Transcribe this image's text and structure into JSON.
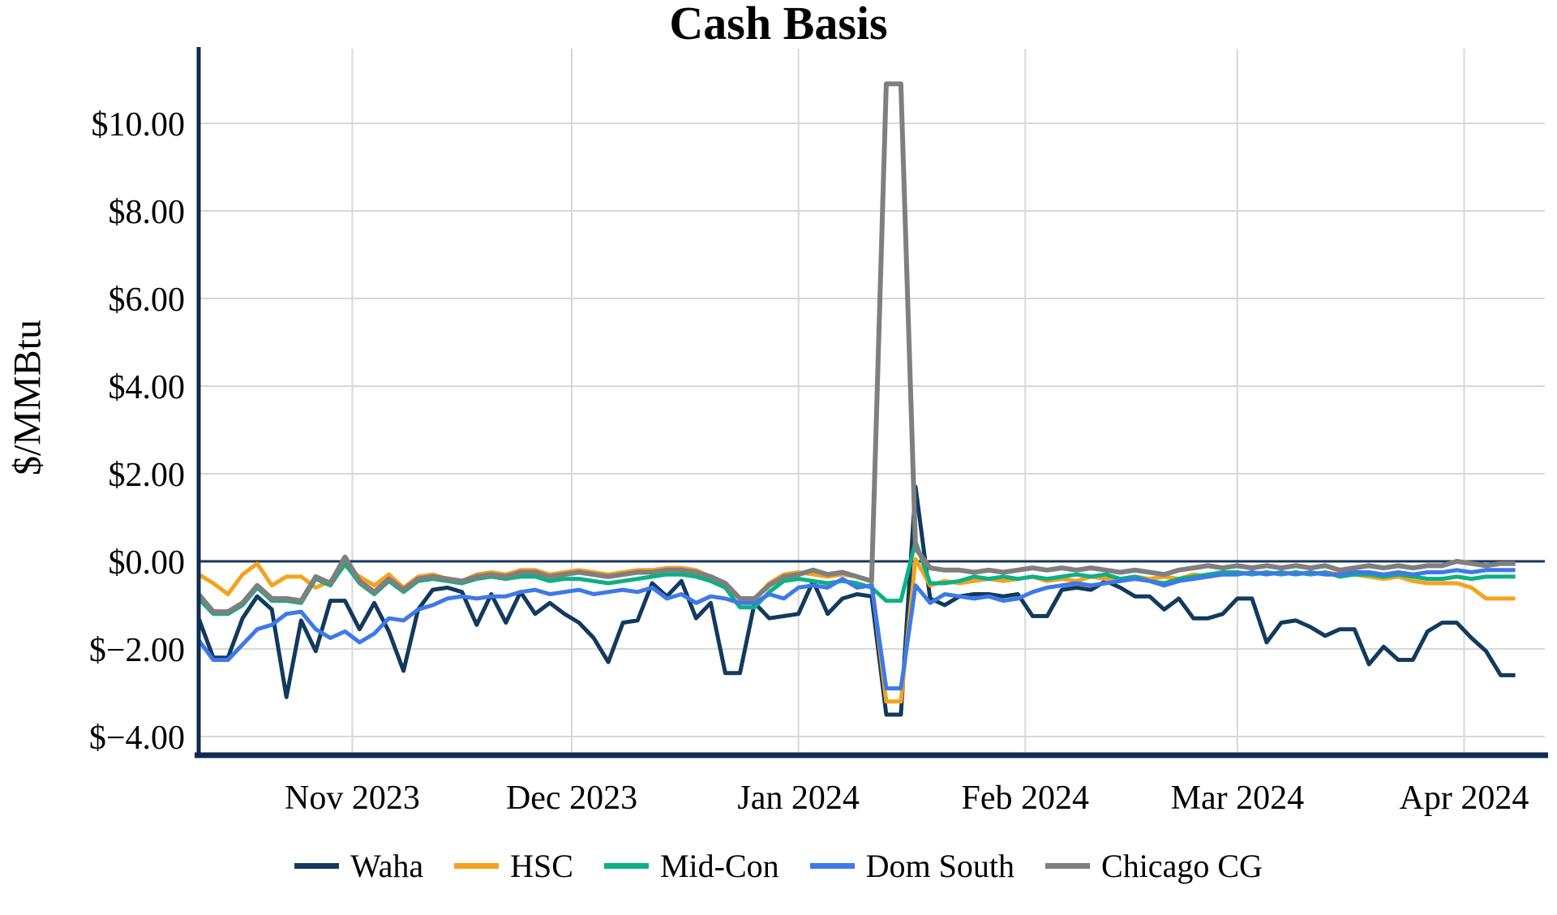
{
  "colors": {
    "background": "#FFFFFF",
    "axis": "#0D2C52",
    "zero_line": "#17375E",
    "grid": "#D8D8D8",
    "text": "#000000"
  },
  "chart_data": {
    "type": "line",
    "title": "Cash Basis",
    "ylabel": "$/MMBtu",
    "xlabel": "",
    "grid": true,
    "legend_position": "bottom",
    "zero_line": true,
    "ylim": [
      -4.35,
      11.7
    ],
    "x_start_date": "2023-10-11",
    "x_unit": "days since 2023-10-11, sampled every 2 days",
    "x_days": [
      0,
      2,
      4,
      6,
      8,
      10,
      12,
      14,
      16,
      18,
      20,
      22,
      24,
      26,
      28,
      30,
      32,
      34,
      36,
      38,
      40,
      42,
      44,
      46,
      48,
      50,
      52,
      54,
      56,
      58,
      60,
      62,
      64,
      66,
      68,
      70,
      72,
      74,
      76,
      78,
      80,
      82,
      84,
      86,
      88,
      90,
      92,
      94,
      96,
      98,
      100,
      102,
      104,
      106,
      108,
      110,
      112,
      114,
      116,
      118,
      120,
      122,
      124,
      126,
      128,
      130,
      132,
      134,
      136,
      138,
      140,
      142,
      144,
      146,
      148,
      150,
      152,
      154,
      156,
      158,
      160,
      162,
      164,
      166,
      168,
      170,
      172,
      174,
      176,
      178,
      180
    ],
    "x_ticks": [
      {
        "label": "Nov 2023",
        "day": 21
      },
      {
        "label": "Dec 2023",
        "day": 51
      },
      {
        "label": "Jan 2024",
        "day": 82
      },
      {
        "label": "Feb 2024",
        "day": 113
      },
      {
        "label": "Mar 2024",
        "day": 142
      },
      {
        "label": "Apr 2024",
        "day": 173
      }
    ],
    "y_ticks": [
      {
        "label": "$10.00",
        "value": 10
      },
      {
        "label": "$8.00",
        "value": 8
      },
      {
        "label": "$6.00",
        "value": 6
      },
      {
        "label": "$4.00",
        "value": 4
      },
      {
        "label": "$2.00",
        "value": 2
      },
      {
        "label": "$0.00",
        "value": 0
      },
      {
        "label": "$−2.00",
        "value": -2
      },
      {
        "label": "$−4.00",
        "value": -4
      }
    ],
    "series": [
      {
        "name": "Waha",
        "color": "#123A5E",
        "width": 5,
        "values": [
          -1.3,
          -2.2,
          -2.2,
          -1.3,
          -0.8,
          -1.1,
          -3.1,
          -1.35,
          -2.05,
          -0.9,
          -0.9,
          -1.55,
          -0.95,
          -1.6,
          -2.5,
          -1.1,
          -0.65,
          -0.6,
          -0.7,
          -1.45,
          -0.75,
          -1.4,
          -0.7,
          -1.2,
          -0.95,
          -1.2,
          -1.4,
          -1.75,
          -2.3,
          -1.4,
          -1.35,
          -0.5,
          -0.8,
          -0.45,
          -1.3,
          -0.95,
          -2.55,
          -2.55,
          -0.95,
          -1.3,
          -1.25,
          -1.2,
          -0.45,
          -1.2,
          -0.85,
          -0.75,
          -0.8,
          -3.5,
          -3.5,
          1.7,
          -0.85,
          -1.0,
          -0.8,
          -0.75,
          -0.75,
          -0.8,
          -0.75,
          -1.25,
          -1.25,
          -0.65,
          -0.6,
          -0.65,
          -0.45,
          -0.6,
          -0.8,
          -0.8,
          -1.1,
          -0.85,
          -1.3,
          -1.3,
          -1.2,
          -0.85,
          -0.85,
          -1.85,
          -1.4,
          -1.35,
          -1.5,
          -1.7,
          -1.55,
          -1.55,
          -2.35,
          -1.95,
          -2.25,
          -2.25,
          -1.6,
          -1.4,
          -1.4,
          -1.75,
          -2.05,
          -2.6,
          -2.6
        ]
      },
      {
        "name": "HSC",
        "color": "#F6A21D",
        "width": 5,
        "values": [
          -0.3,
          -0.5,
          -0.75,
          -0.3,
          -0.05,
          -0.55,
          -0.35,
          -0.35,
          -0.6,
          -0.45,
          -0.1,
          -0.35,
          -0.55,
          -0.3,
          -0.6,
          -0.35,
          -0.3,
          -0.4,
          -0.45,
          -0.3,
          -0.25,
          -0.3,
          -0.2,
          -0.2,
          -0.3,
          -0.25,
          -0.2,
          -0.25,
          -0.3,
          -0.25,
          -0.2,
          -0.2,
          -0.15,
          -0.15,
          -0.2,
          -0.35,
          -0.5,
          -0.85,
          -0.85,
          -0.5,
          -0.3,
          -0.25,
          -0.3,
          -0.35,
          -0.3,
          -0.35,
          -0.45,
          -3.2,
          -3.2,
          0.05,
          -0.55,
          -0.45,
          -0.5,
          -0.45,
          -0.4,
          -0.45,
          -0.4,
          -0.35,
          -0.45,
          -0.4,
          -0.45,
          -0.35,
          -0.4,
          -0.45,
          -0.35,
          -0.4,
          -0.35,
          -0.4,
          -0.3,
          -0.35,
          -0.3,
          -0.25,
          -0.3,
          -0.25,
          -0.3,
          -0.25,
          -0.3,
          -0.25,
          -0.3,
          -0.3,
          -0.35,
          -0.4,
          -0.35,
          -0.45,
          -0.5,
          -0.5,
          -0.5,
          -0.6,
          -0.85,
          -0.85,
          -0.85
        ]
      },
      {
        "name": "Mid-Con",
        "color": "#0BB184",
        "width": 5,
        "values": [
          -0.85,
          -1.2,
          -1.2,
          -1.0,
          -0.6,
          -0.9,
          -0.9,
          -0.95,
          -0.4,
          -0.55,
          -0.05,
          -0.5,
          -0.75,
          -0.45,
          -0.7,
          -0.45,
          -0.4,
          -0.45,
          -0.5,
          -0.4,
          -0.35,
          -0.4,
          -0.35,
          -0.35,
          -0.45,
          -0.4,
          -0.4,
          -0.45,
          -0.5,
          -0.45,
          -0.4,
          -0.35,
          -0.3,
          -0.3,
          -0.35,
          -0.45,
          -0.6,
          -1.05,
          -1.05,
          -0.7,
          -0.45,
          -0.4,
          -0.45,
          -0.5,
          -0.45,
          -0.5,
          -0.6,
          -0.9,
          -0.9,
          0.45,
          -0.5,
          -0.5,
          -0.45,
          -0.35,
          -0.4,
          -0.35,
          -0.4,
          -0.35,
          -0.4,
          -0.35,
          -0.3,
          -0.35,
          -0.3,
          -0.4,
          -0.35,
          -0.45,
          -0.5,
          -0.4,
          -0.35,
          -0.3,
          -0.25,
          -0.25,
          -0.3,
          -0.25,
          -0.3,
          -0.25,
          -0.3,
          -0.25,
          -0.35,
          -0.3,
          -0.3,
          -0.35,
          -0.3,
          -0.35,
          -0.4,
          -0.4,
          -0.35,
          -0.4,
          -0.35,
          -0.35,
          -0.35
        ]
      },
      {
        "name": "Dom South",
        "color": "#3D79E8",
        "width": 5,
        "values": [
          -1.8,
          -2.25,
          -2.25,
          -1.9,
          -1.55,
          -1.45,
          -1.2,
          -1.15,
          -1.55,
          -1.75,
          -1.6,
          -1.85,
          -1.65,
          -1.3,
          -1.35,
          -1.1,
          -1.0,
          -0.85,
          -0.8,
          -0.85,
          -0.8,
          -0.8,
          -0.7,
          -0.65,
          -0.75,
          -0.7,
          -0.65,
          -0.75,
          -0.7,
          -0.65,
          -0.7,
          -0.6,
          -0.85,
          -0.75,
          -0.95,
          -0.8,
          -0.85,
          -0.95,
          -0.95,
          -0.75,
          -0.85,
          -0.6,
          -0.55,
          -0.6,
          -0.4,
          -0.6,
          -0.55,
          -2.9,
          -2.9,
          -0.55,
          -0.95,
          -0.75,
          -0.8,
          -0.85,
          -0.8,
          -0.9,
          -0.85,
          -0.7,
          -0.6,
          -0.55,
          -0.5,
          -0.55,
          -0.5,
          -0.45,
          -0.4,
          -0.45,
          -0.55,
          -0.45,
          -0.4,
          -0.35,
          -0.3,
          -0.3,
          -0.25,
          -0.3,
          -0.25,
          -0.3,
          -0.25,
          -0.3,
          -0.3,
          -0.25,
          -0.25,
          -0.3,
          -0.25,
          -0.3,
          -0.25,
          -0.25,
          -0.2,
          -0.25,
          -0.2,
          -0.2,
          -0.2
        ]
      },
      {
        "name": "Chicago CG",
        "color": "#7F7F7F",
        "width": 6,
        "values": [
          -0.75,
          -1.15,
          -1.15,
          -0.95,
          -0.55,
          -0.85,
          -0.85,
          -0.9,
          -0.35,
          -0.5,
          0.1,
          -0.45,
          -0.7,
          -0.4,
          -0.65,
          -0.4,
          -0.35,
          -0.4,
          -0.45,
          -0.35,
          -0.3,
          -0.35,
          -0.25,
          -0.25,
          -0.35,
          -0.3,
          -0.25,
          -0.3,
          -0.35,
          -0.3,
          -0.25,
          -0.25,
          -0.2,
          -0.2,
          -0.25,
          -0.35,
          -0.5,
          -0.85,
          -0.85,
          -0.55,
          -0.35,
          -0.3,
          -0.2,
          -0.3,
          -0.25,
          -0.35,
          -0.45,
          10.9,
          10.9,
          0.3,
          -0.15,
          -0.2,
          -0.2,
          -0.25,
          -0.2,
          -0.25,
          -0.2,
          -0.15,
          -0.2,
          -0.15,
          -0.2,
          -0.15,
          -0.2,
          -0.25,
          -0.2,
          -0.25,
          -0.3,
          -0.2,
          -0.15,
          -0.1,
          -0.15,
          -0.1,
          -0.15,
          -0.1,
          -0.15,
          -0.1,
          -0.15,
          -0.1,
          -0.2,
          -0.15,
          -0.1,
          -0.15,
          -0.1,
          -0.15,
          -0.1,
          -0.1,
          0.0,
          -0.05,
          -0.1,
          -0.05,
          -0.05
        ]
      }
    ]
  }
}
